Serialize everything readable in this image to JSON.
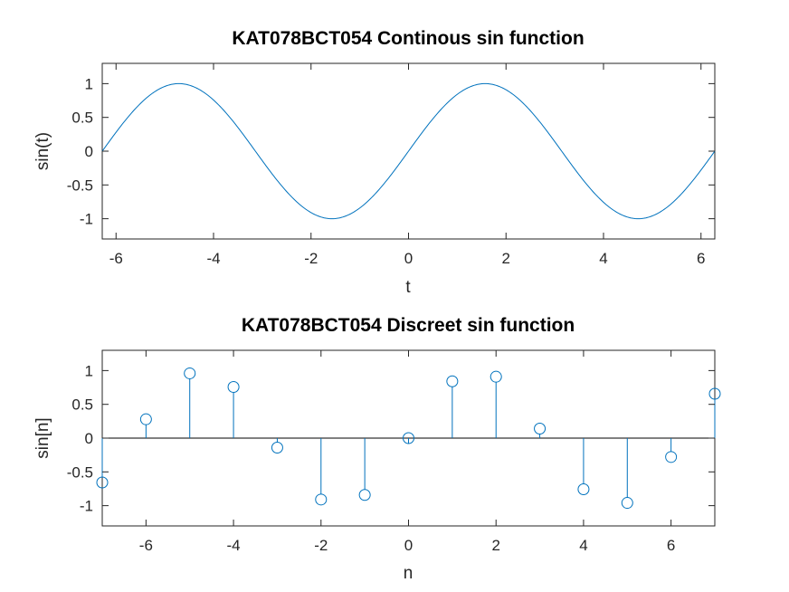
{
  "colors": {
    "series": "#0072bd",
    "axis": "#262626",
    "baseline": "#000000"
  },
  "chart_data": [
    {
      "type": "line",
      "title": "KAT078BCT054 Continous sin function",
      "xlabel": "t",
      "ylabel": "sin(t)",
      "xlim": [
        -6.2832,
        6.2832
      ],
      "ylim": [
        -1.3,
        1.3
      ],
      "x_ticks": [
        -6,
        -4,
        -2,
        0,
        2,
        4,
        6
      ],
      "x_tick_labels": [
        "-6",
        "-4",
        "-2",
        "0",
        "2",
        "4",
        "6"
      ],
      "y_ticks": [
        1,
        0.5,
        0,
        -0.5,
        -1
      ],
      "y_tick_labels": [
        "1",
        "0.5",
        "0",
        "-0.5",
        "-1"
      ],
      "grid": false,
      "series": [
        {
          "function": "sin",
          "x": [
            -6.2832,
            -5.8905,
            -5.4978,
            -5.1051,
            -4.7124,
            -4.3197,
            -3.927,
            -3.5343,
            -3.1416,
            -2.7489,
            -2.3562,
            -1.9635,
            -1.5708,
            -1.1781,
            -0.7854,
            -0.3927,
            0,
            0.3927,
            0.7854,
            1.1781,
            1.5708,
            1.9635,
            2.3562,
            2.7489,
            3.1416,
            3.5343,
            3.927,
            4.3197,
            4.7124,
            5.1051,
            5.4978,
            5.8905,
            6.2832
          ],
          "y": [
            0,
            0.3827,
            0.7071,
            0.9239,
            1,
            0.9239,
            0.7071,
            0.3827,
            0,
            -0.3827,
            -0.7071,
            -0.9239,
            -1,
            -0.9239,
            -0.7071,
            -0.3827,
            0,
            0.3827,
            0.7071,
            0.9239,
            1,
            0.9239,
            0.7071,
            0.3827,
            0,
            -0.3827,
            -0.7071,
            -0.9239,
            -1,
            -0.9239,
            -0.7071,
            -0.3827,
            0
          ]
        }
      ]
    },
    {
      "type": "stem",
      "title": "KAT078BCT054 Discreet sin function",
      "xlabel": "n",
      "ylabel": "sin[n]",
      "xlim": [
        -7,
        7
      ],
      "ylim": [
        -1.3,
        1.3
      ],
      "x_ticks": [
        -6,
        -4,
        -2,
        0,
        2,
        4,
        6
      ],
      "x_tick_labels": [
        "-6",
        "-4",
        "-2",
        "0",
        "2",
        "4",
        "6"
      ],
      "y_ticks": [
        1,
        0.5,
        0,
        -0.5,
        -1
      ],
      "y_tick_labels": [
        "1",
        "0.5",
        "0",
        "-0.5",
        "-1"
      ],
      "grid": false,
      "series": [
        {
          "x": [
            -7,
            -6,
            -5,
            -4,
            -3,
            -2,
            -1,
            0,
            1,
            2,
            3,
            4,
            5,
            6,
            7
          ],
          "y": [
            -0.657,
            0.279,
            0.959,
            0.757,
            -0.141,
            -0.909,
            -0.841,
            0,
            0.841,
            0.909,
            0.141,
            -0.757,
            -0.959,
            -0.279,
            0.657
          ]
        }
      ]
    }
  ]
}
